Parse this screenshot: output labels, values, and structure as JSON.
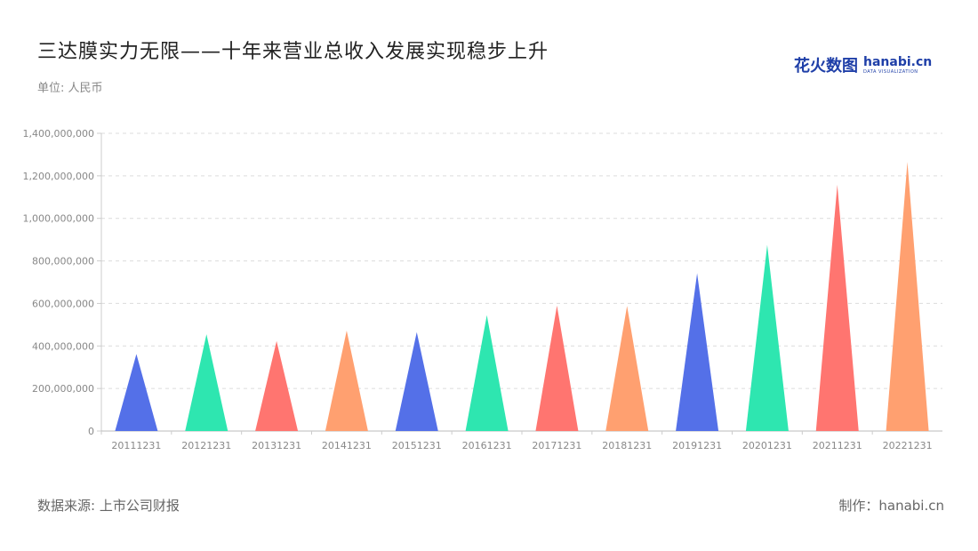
{
  "header": {
    "title": "三达膜实力无限——十年来营业总收入发展实现稳步上升",
    "unit": "单位: 人民币"
  },
  "logo": {
    "cn": "花火数图",
    "en": "hanabi.cn",
    "en_sub": "DATA VISUALIZATION"
  },
  "footer": {
    "source": "数据来源: 上市公司财报",
    "maker": "制作：hanabi.cn"
  },
  "chart_data": {
    "type": "bar",
    "shape": "triangle",
    "categories": [
      "20111231",
      "20121231",
      "20131231",
      "20141231",
      "20151231",
      "20161231",
      "20171231",
      "20181231",
      "20191231",
      "20201231",
      "20211231",
      "20221231"
    ],
    "values": [
      362000000,
      455000000,
      423000000,
      472000000,
      465000000,
      545000000,
      590000000,
      588000000,
      742000000,
      875000000,
      1158000000,
      1265000000
    ],
    "colors": [
      "#5470e8",
      "#2ee6b0",
      "#ff7570",
      "#ffa070",
      "#5470e8",
      "#2ee6b0",
      "#ff7570",
      "#ffa070",
      "#5470e8",
      "#2ee6b0",
      "#ff7570",
      "#ffa070"
    ],
    "y_ticks": [
      "0",
      "200,000,000",
      "400,000,000",
      "600,000,000",
      "800,000,000",
      "1,000,000,000",
      "1,200,000,000",
      "1,400,000,000"
    ],
    "ylim": [
      0,
      1400000000
    ],
    "grid": true,
    "legend": "none"
  }
}
